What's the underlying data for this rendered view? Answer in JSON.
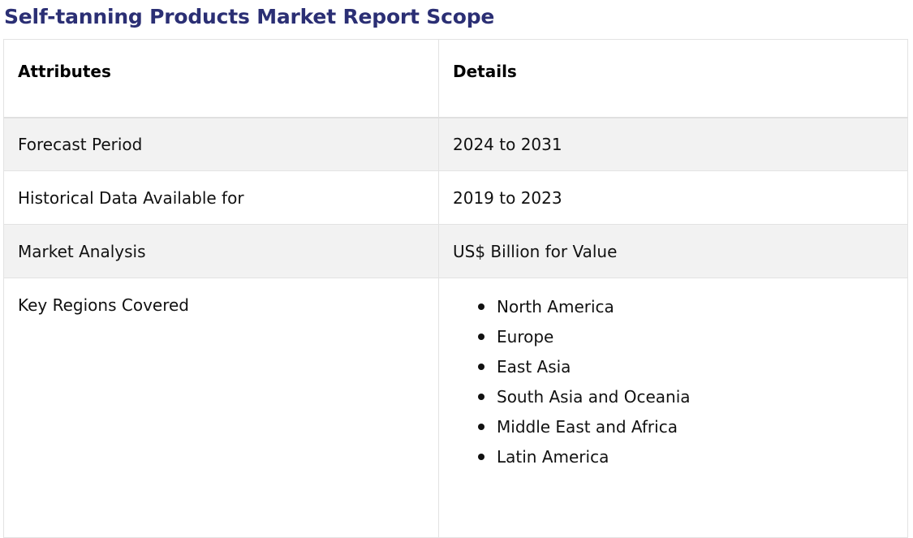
{
  "page": {
    "title": "Self-tanning Products Market Report Scope"
  },
  "table": {
    "headers": {
      "attributes": "Attributes",
      "details": "Details"
    },
    "rows": [
      {
        "attribute": "Forecast Period",
        "detail": "2024 to 2031"
      },
      {
        "attribute": "Historical Data Available for",
        "detail": "2019 to 2023"
      },
      {
        "attribute": "Market Analysis",
        "detail": "US$ Billion for Value"
      }
    ],
    "regions": {
      "attribute": "Key Regions Covered",
      "items": [
        "North America",
        "Europe",
        "East Asia",
        "South Asia and Oceania",
        "Middle East and Africa",
        "Latin America"
      ]
    }
  }
}
